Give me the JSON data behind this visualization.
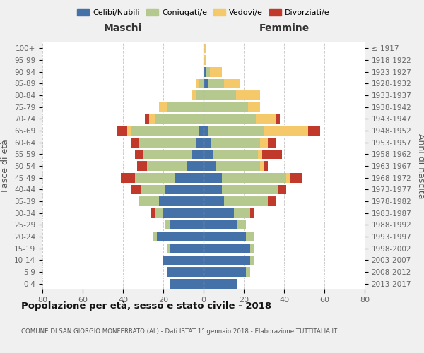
{
  "age_groups": [
    "0-4",
    "5-9",
    "10-14",
    "15-19",
    "20-24",
    "25-29",
    "30-34",
    "35-39",
    "40-44",
    "45-49",
    "50-54",
    "55-59",
    "60-64",
    "65-69",
    "70-74",
    "75-79",
    "80-84",
    "85-89",
    "90-94",
    "95-99",
    "100+"
  ],
  "birth_years": [
    "2013-2017",
    "2008-2012",
    "2003-2007",
    "1998-2002",
    "1993-1997",
    "1988-1992",
    "1983-1987",
    "1978-1982",
    "1973-1977",
    "1968-1972",
    "1963-1967",
    "1958-1962",
    "1953-1957",
    "1948-1952",
    "1943-1947",
    "1938-1942",
    "1933-1937",
    "1928-1932",
    "1923-1927",
    "1918-1922",
    "≤ 1917"
  ],
  "maschi": {
    "celibi": [
      17,
      18,
      20,
      17,
      23,
      17,
      20,
      22,
      19,
      14,
      8,
      6,
      4,
      2,
      0,
      0,
      0,
      0,
      0,
      0,
      0
    ],
    "coniugati": [
      0,
      0,
      0,
      1,
      2,
      2,
      4,
      10,
      12,
      20,
      20,
      24,
      28,
      34,
      24,
      18,
      4,
      2,
      0,
      0,
      0
    ],
    "vedovi": [
      0,
      0,
      0,
      0,
      0,
      0,
      0,
      0,
      0,
      0,
      0,
      0,
      0,
      2,
      3,
      4,
      2,
      2,
      0,
      0,
      0
    ],
    "divorziati": [
      0,
      0,
      0,
      0,
      0,
      0,
      2,
      0,
      5,
      7,
      5,
      4,
      4,
      5,
      2,
      0,
      0,
      0,
      0,
      0,
      0
    ]
  },
  "femmine": {
    "celibi": [
      17,
      21,
      23,
      23,
      21,
      17,
      15,
      10,
      9,
      9,
      6,
      5,
      4,
      2,
      0,
      0,
      0,
      2,
      1,
      0,
      0
    ],
    "coniugati": [
      0,
      2,
      2,
      2,
      4,
      4,
      8,
      22,
      28,
      32,
      22,
      22,
      24,
      28,
      26,
      22,
      16,
      8,
      2,
      0,
      0
    ],
    "vedovi": [
      0,
      0,
      0,
      0,
      0,
      0,
      0,
      0,
      0,
      2,
      2,
      2,
      4,
      22,
      10,
      6,
      12,
      8,
      6,
      1,
      1
    ],
    "divorziati": [
      0,
      0,
      0,
      0,
      0,
      0,
      2,
      4,
      4,
      6,
      2,
      10,
      4,
      6,
      2,
      0,
      0,
      0,
      0,
      0,
      0
    ]
  },
  "colors": {
    "celibi": "#4472a8",
    "coniugati": "#b5c98e",
    "vedovi": "#f5c96a",
    "divorziati": "#c0392b"
  },
  "xlim": 80,
  "title": "Popolazione per età, sesso e stato civile - 2018",
  "subtitle": "COMUNE DI SAN GIORGIO MONFERRATO (AL) - Dati ISTAT 1° gennaio 2018 - Elaborazione TUTTITALIA.IT",
  "ylabel_left": "Fasce di età",
  "ylabel_right": "Anni di nascita",
  "xlabel_left": "Maschi",
  "xlabel_right": "Femmine",
  "bg_color": "#f0f0f0",
  "plot_bg": "#ffffff"
}
